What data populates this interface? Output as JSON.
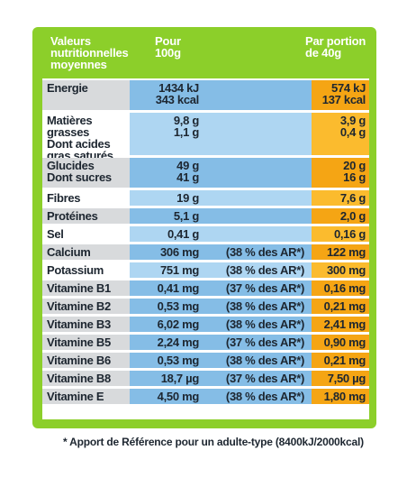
{
  "header": {
    "col1": [
      "Valeurs",
      "nutritionnelles",
      "moyennes"
    ],
    "col2": [
      "Pour",
      "100g"
    ],
    "col3": [
      "Par portion",
      "de 40g"
    ]
  },
  "rows": [
    {
      "name": [
        "Energie"
      ],
      "per100": [
        "1434 kJ",
        "343 kcal"
      ],
      "ar": "",
      "portion": [
        "574 kJ",
        "137 kcal"
      ]
    },
    {
      "name": [
        "Matières grasses",
        "Dont acides",
        "gras saturés"
      ],
      "per100": [
        "9,8 g",
        "1,1 g"
      ],
      "ar": "",
      "portion": [
        "3,9 g",
        "0,4 g"
      ]
    },
    {
      "name": [
        "Glucides",
        "Dont sucres"
      ],
      "per100": [
        "49 g",
        "41 g"
      ],
      "ar": "",
      "portion": [
        "20 g",
        "16 g"
      ]
    },
    {
      "name": [
        "Fibres"
      ],
      "per100": [
        "19 g"
      ],
      "ar": "",
      "portion": [
        "7,6 g"
      ]
    },
    {
      "name": [
        "Protéines"
      ],
      "per100": [
        "5,1 g"
      ],
      "ar": "",
      "portion": [
        "2,0 g"
      ]
    },
    {
      "name": [
        "Sel"
      ],
      "per100": [
        "0,41 g"
      ],
      "ar": "",
      "portion": [
        "0,16 g"
      ]
    },
    {
      "name": [
        "Calcium"
      ],
      "per100": [
        "306 mg"
      ],
      "ar": "(38 % des AR*)",
      "portion": [
        "122 mg"
      ]
    },
    {
      "name": [
        "Potassium"
      ],
      "per100": [
        "751 mg"
      ],
      "ar": "(38 % des AR*)",
      "portion": [
        "300 mg"
      ]
    },
    {
      "name": [
        "Vitamine B1"
      ],
      "per100": [
        "0,41 mg"
      ],
      "ar": "(37 % des AR*)",
      "portion": [
        "0,16 mg"
      ]
    },
    {
      "name": [
        "Vitamine B2"
      ],
      "per100": [
        "0,53 mg"
      ],
      "ar": "(38 % des AR*)",
      "portion": [
        "0,21 mg"
      ]
    },
    {
      "name": [
        "Vitamine B3"
      ],
      "per100": [
        "6,02 mg"
      ],
      "ar": "(38 % des AR*)",
      "portion": [
        "2,41 mg"
      ]
    },
    {
      "name": [
        "Vitamine B5"
      ],
      "per100": [
        "2,24 mg"
      ],
      "ar": "(37 % des AR*)",
      "portion": [
        "0,90 mg"
      ]
    },
    {
      "name": [
        "Vitamine B6"
      ],
      "per100": [
        "0,53 mg"
      ],
      "ar": "(38 % des AR*)",
      "portion": [
        "0,21 mg"
      ]
    },
    {
      "name": [
        "Vitamine B8"
      ],
      "per100": [
        "18,7 µg"
      ],
      "ar": "(37 % des AR*)",
      "portion": [
        "7,50 µg"
      ]
    },
    {
      "name": [
        "Vitamine E"
      ],
      "per100": [
        "4,50 mg"
      ],
      "ar": "(38 % des AR*)",
      "portion": [
        "1,80 mg"
      ]
    }
  ],
  "footnote": "* Apport de Référence pour un adulte-type (8400kJ/2000kcal)",
  "colors": {
    "frame": "#8ccf2a",
    "shade_name": "#d8dadc",
    "shade_blue": "#85bde6",
    "light_blue": "#aed6f2",
    "shade_orange": "#f5a514",
    "light_orange": "#fbbb2e"
  }
}
